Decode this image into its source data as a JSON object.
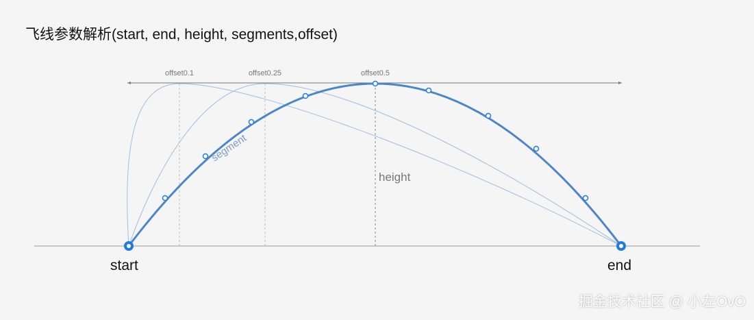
{
  "title": "飞线参数解析(start, end, height, segments,offset)",
  "labels": {
    "start": "start",
    "end": "end",
    "height": "height",
    "segment": "segment",
    "offset_1": "offset0.1",
    "offset_2": "offset0.25",
    "offset_3": "offset0.5"
  },
  "watermark": "掘金技术社区 @ 小左OvO",
  "colors": {
    "main_curve": "#4a86c8",
    "offset_curves": "#9dbde3",
    "point": "#1e7be0",
    "baseline": "#999999"
  }
}
